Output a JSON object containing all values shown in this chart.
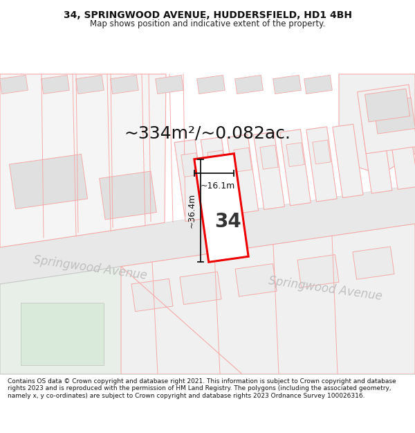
{
  "title": "34, SPRINGWOOD AVENUE, HUDDERSFIELD, HD1 4BH",
  "subtitle": "Map shows position and indicative extent of the property.",
  "area_text": "~334m²/~0.082ac.",
  "width_label": "~16.1m",
  "height_label": "~36.4m",
  "number_label": "34",
  "street_label1": "Springwood Avenue",
  "street_label2": "Springwood Avenue",
  "footer": "Contains OS data © Crown copyright and database right 2021. This information is subject to Crown copyright and database rights 2023 and is reproduced with the permission of HM Land Registry. The polygons (including the associated geometry, namely x, y co-ordinates) are subject to Crown copyright and database rights 2023 Ordnance Survey 100026316.",
  "bg_color": "#ffffff",
  "outline_color": "#f5aaaa",
  "highlight_color": "#ee0000",
  "figsize": [
    6.0,
    6.25
  ],
  "dpi": 100,
  "title_fontsize": 10,
  "subtitle_fontsize": 8.5,
  "footer_fontsize": 6.5,
  "area_fontsize": 18,
  "number_fontsize": 20,
  "dim_fontsize": 9,
  "street_fontsize": 12
}
